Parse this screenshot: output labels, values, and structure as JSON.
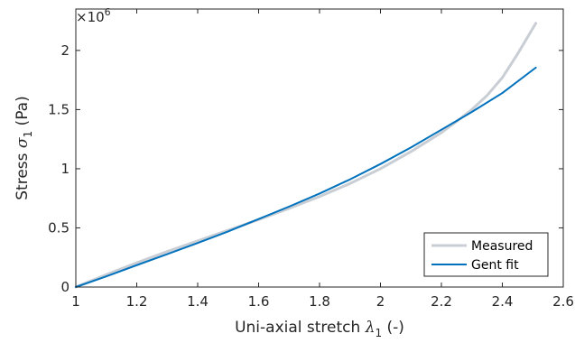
{
  "chart_data": {
    "type": "line",
    "xlabel_prefix": "Uni-axial stretch ",
    "xlabel_symbol": "λ",
    "xlabel_subscript": "1",
    "xlabel_suffix": " (-)",
    "ylabel_prefix": "Stress ",
    "ylabel_symbol": "σ",
    "ylabel_subscript": "1",
    "ylabel_suffix": " (Pa)",
    "y_multiplier_base": "×10",
    "y_multiplier_exp": "6",
    "xlim": [
      1,
      2.6
    ],
    "ylim": [
      0,
      2.35
    ],
    "xticks": [
      1,
      1.2,
      1.4,
      1.6,
      1.8,
      2,
      2.2,
      2.4,
      2.6
    ],
    "xtick_labels": [
      "1",
      "1.2",
      "1.4",
      "1.6",
      "1.8",
      "2",
      "2.2",
      "2.4",
      "2.6"
    ],
    "yticks": [
      0,
      0.5,
      1,
      1.5,
      2
    ],
    "ytick_labels": [
      "0",
      "0.5",
      "1",
      "1.5",
      "2"
    ],
    "grid": false,
    "legend_position": "bottom-right",
    "series": [
      {
        "name": "Measured",
        "color": "#c9cdd4",
        "x": [
          1,
          1.1,
          1.2,
          1.3,
          1.4,
          1.5,
          1.6,
          1.7,
          1.8,
          1.9,
          2.0,
          2.1,
          2.2,
          2.25,
          2.3,
          2.35,
          2.4,
          2.45,
          2.51
        ],
        "y": [
          0,
          0.105,
          0.205,
          0.3,
          0.39,
          0.48,
          0.57,
          0.665,
          0.765,
          0.875,
          1.0,
          1.145,
          1.305,
          1.4,
          1.5,
          1.62,
          1.77,
          1.97,
          2.23
        ]
      },
      {
        "name": "Gent fit",
        "color": "#0072bd",
        "x": [
          1,
          1.1,
          1.2,
          1.3,
          1.4,
          1.5,
          1.6,
          1.7,
          1.8,
          1.9,
          2.0,
          2.1,
          2.2,
          2.3,
          2.4,
          2.51
        ],
        "y": [
          0,
          0.09,
          0.185,
          0.278,
          0.372,
          0.47,
          0.575,
          0.68,
          0.79,
          0.91,
          1.04,
          1.18,
          1.33,
          1.48,
          1.64,
          1.855
        ]
      }
    ]
  }
}
